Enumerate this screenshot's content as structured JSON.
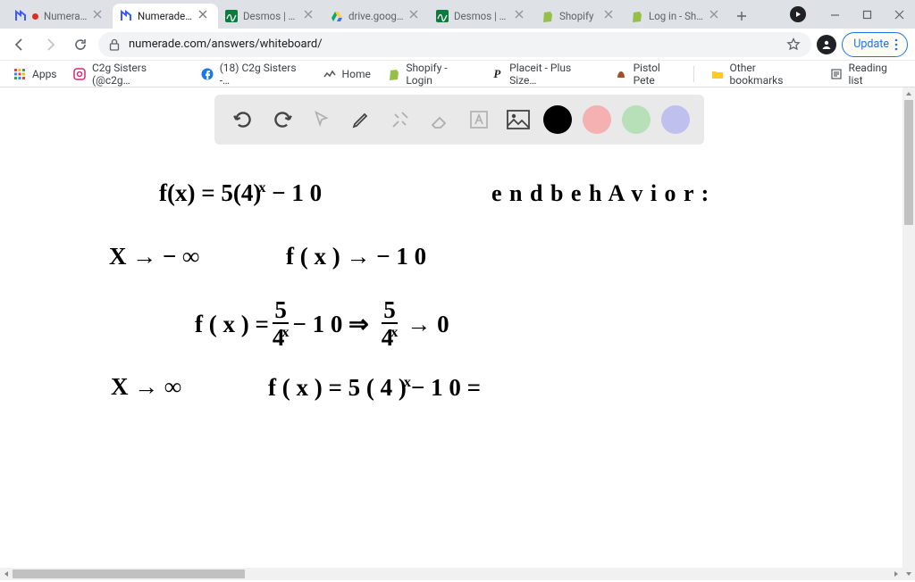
{
  "tabs": [
    {
      "title": "Numerade",
      "icon": "numerade",
      "recording": true
    },
    {
      "title": "Numerade Whiteboard",
      "icon": "numerade"
    },
    {
      "title": "Desmos | Graphing",
      "icon": "desmos"
    },
    {
      "title": "drive.google.com",
      "icon": "drive"
    },
    {
      "title": "Desmos | Matrix",
      "icon": "desmos"
    },
    {
      "title": "Shopify",
      "icon": "shopify"
    },
    {
      "title": "Log in - Shopify",
      "icon": "shopify"
    }
  ],
  "active_tab_index": 1,
  "omnibox_url": "numerade.com/answers/whiteboard/",
  "update_label": "Update",
  "bookmarks": [
    {
      "label": "Apps",
      "icon": "apps"
    },
    {
      "label": "C2g Sisters (@c2g…",
      "icon": "instagram"
    },
    {
      "label": "(18) C2g Sisters -…",
      "icon": "facebook"
    },
    {
      "label": "Home",
      "icon": "zigzag"
    },
    {
      "label": "Shopify - Login",
      "icon": "shopify"
    },
    {
      "label": "Placeit - Plus Size…",
      "icon": "placeit"
    },
    {
      "label": "Pistol Pete",
      "icon": "pete"
    }
  ],
  "bookmarks_right": [
    {
      "label": "Other bookmarks",
      "icon": "folder"
    },
    {
      "label": "Reading list",
      "icon": "reading"
    }
  ],
  "wb_colors": [
    "#000000",
    "#f5b1b1",
    "#b8e0b8",
    "#c0c0ef"
  ],
  "handwriting": {
    "l1_left": "f(x) = 5(4)",
    "l1_exp": "x",
    "l1_right_a": "−  1 0",
    "l1_label": "e n d  b e h A v i o r  :",
    "l2_a": "X → − ∞",
    "l2_b": "f ( x )  →  − 1 0",
    "l3_a": "f ( x ) =",
    "l3_num": "5",
    "l3_den": "4",
    "l3_exp": "x",
    "l3_b": "− 1 0   ⇒",
    "l3_num2": "5",
    "l3_den2": "4",
    "l3_exp2": "x",
    "l3_c": "→ 0",
    "l4_a": "X →  ∞",
    "l4_b": "f ( x )  =  5 ( 4 )",
    "l4_exp": "x",
    "l4_c": "− 1 0  ="
  },
  "colors": {
    "tabstrip_bg": "#dee1e6",
    "omnibox_bg": "#f1f3f4",
    "update_border": "#1a73e8",
    "wb_toolbar_bg": "#e9e9e9"
  }
}
